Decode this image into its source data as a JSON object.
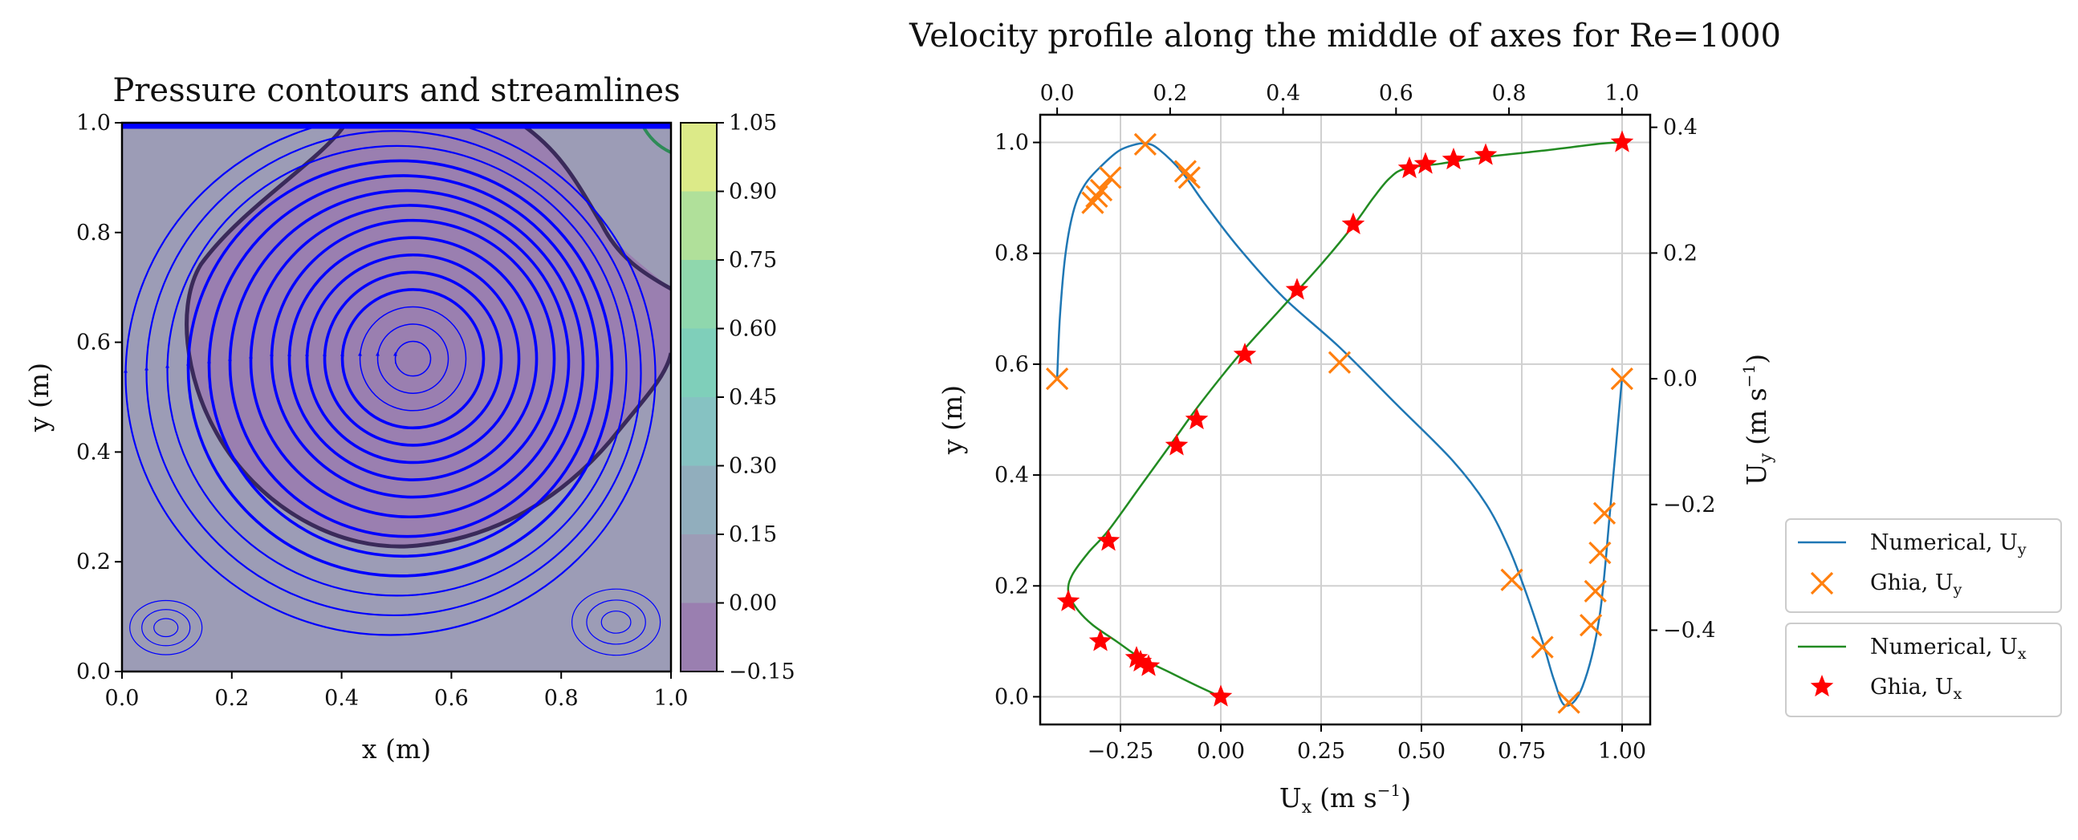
{
  "chart_data": [
    {
      "type": "heatmap",
      "title": "Pressure contours and streamlines",
      "xlabel": "x (m)",
      "ylabel": "y (m)",
      "xlim": [
        0,
        1
      ],
      "ylim": [
        0,
        1
      ],
      "xticks": [
        "0.0",
        "0.2",
        "0.4",
        "0.6",
        "0.8",
        "1.0"
      ],
      "yticks": [
        "0.0",
        "0.2",
        "0.4",
        "0.6",
        "0.8",
        "1.0"
      ],
      "colorbar": {
        "levels": [
          -0.15,
          0.0,
          0.15,
          0.3,
          0.45,
          0.6,
          0.75,
          0.9,
          1.05
        ],
        "tick_labels": [
          "−0.15",
          "0.00",
          "0.15",
          "0.30",
          "0.45",
          "0.60",
          "0.75",
          "0.90",
          "1.05"
        ],
        "colors": [
          "#9a7fb0",
          "#9c9cb6",
          "#91aebd",
          "#86c2c2",
          "#7fcfba",
          "#8fd7ad",
          "#b0e09a",
          "#dcea88",
          "#f3f183"
        ]
      },
      "vortex_center": [
        0.53,
        0.57
      ],
      "background_color": "#9c9cb6",
      "inner_region_color": "#9a7fb0",
      "streamline_color": "#0000ff",
      "contour_color": "#3a2a5a"
    },
    {
      "type": "line",
      "title": "Velocity profile along the middle of axes for Re=1000",
      "xlabel_bottom": "U",
      "xlabel_bottom_sub": "x",
      "xlabel_bottom_unit": "(m s",
      "ylabel_left": "y (m)",
      "ylabel_right": "U",
      "ylabel_right_sub": "y",
      "ylabel_right_unit": "(m s",
      "unit_exp": "−1",
      "unit_close": ")",
      "xlim_bottom": [
        -0.45,
        1.07
      ],
      "ylim_left": [
        -0.05,
        1.05
      ],
      "xlim_top": [
        -0.03,
        1.05
      ],
      "ylim_right": [
        -0.55,
        0.42
      ],
      "xticks_bottom": [
        -0.25,
        0.0,
        0.25,
        0.5,
        0.75,
        1.0
      ],
      "xtick_labels_bottom": [
        "−0.25",
        "0.00",
        "0.25",
        "0.50",
        "0.75",
        "1.00"
      ],
      "yticks_left": [
        0.0,
        0.2,
        0.4,
        0.6,
        0.8,
        1.0
      ],
      "ytick_labels_left": [
        "0.0",
        "0.2",
        "0.4",
        "0.6",
        "0.8",
        "1.0"
      ],
      "xticks_top": [
        0.0,
        0.2,
        0.4,
        0.6,
        0.8,
        1.0
      ],
      "xtick_labels_top": [
        "0.0",
        "0.2",
        "0.4",
        "0.6",
        "0.8",
        "1.0"
      ],
      "yticks_right": [
        -0.4,
        -0.2,
        0.0,
        0.2,
        0.4
      ],
      "ytick_labels_right": [
        "−0.4",
        "−0.2",
        "0.0",
        "0.2",
        "0.4"
      ],
      "grid": true,
      "series": [
        {
          "name": "Numerical, U",
          "name_sub": "y",
          "axes": "top-right",
          "style": "line",
          "color": "#1f77b4",
          "x": [
            0.0,
            0.005,
            0.015,
            0.03,
            0.05,
            0.08,
            0.11,
            0.14,
            0.16,
            0.18,
            0.22,
            0.26,
            0.32,
            0.4,
            0.5,
            0.6,
            0.7,
            0.76,
            0.8,
            0.83,
            0.86,
            0.88,
            0.9,
            0.93,
            0.96,
            0.98,
            1.0
          ],
          "y": [
            0.0,
            0.1,
            0.2,
            0.27,
            0.31,
            0.34,
            0.363,
            0.373,
            0.374,
            0.365,
            0.33,
            0.28,
            0.21,
            0.13,
            0.05,
            -0.04,
            -0.13,
            -0.2,
            -0.27,
            -0.34,
            -0.42,
            -0.48,
            -0.52,
            -0.49,
            -0.38,
            -0.2,
            0.0
          ]
        },
        {
          "name": "Ghia, U",
          "name_sub": "y",
          "axes": "top-right",
          "style": "x",
          "color": "#ff7f0e",
          "x": [
            0.0,
            0.063,
            0.07,
            0.078,
            0.094,
            0.156,
            0.227,
            0.234,
            0.5,
            0.805,
            0.859,
            0.906,
            0.945,
            0.953,
            0.961,
            0.969,
            1.0
          ],
          "y": [
            0.0,
            0.28,
            0.29,
            0.3,
            0.32,
            0.373,
            0.33,
            0.32,
            0.026,
            -0.32,
            -0.427,
            -0.515,
            -0.392,
            -0.338,
            -0.277,
            -0.214,
            0.0
          ]
        },
        {
          "name": "Numerical, U",
          "name_sub": "x",
          "axes": "bottom-left",
          "style": "line",
          "color": "#228b22",
          "x": [
            0.0,
            -0.06,
            -0.13,
            -0.2,
            -0.26,
            -0.32,
            -0.36,
            -0.38,
            -0.37,
            -0.33,
            -0.28,
            -0.2,
            -0.12,
            -0.05,
            0.05,
            0.15,
            0.25,
            0.33,
            0.38,
            0.42,
            0.46,
            0.55,
            0.65,
            0.8,
            0.95,
            1.0
          ],
          "y": [
            0.0,
            0.02,
            0.045,
            0.07,
            0.1,
            0.13,
            0.16,
            0.19,
            0.22,
            0.26,
            0.3,
            0.38,
            0.46,
            0.53,
            0.62,
            0.7,
            0.78,
            0.85,
            0.9,
            0.935,
            0.953,
            0.962,
            0.973,
            0.985,
            0.998,
            1.0
          ]
        },
        {
          "name": "Ghia, U",
          "name_sub": "x",
          "axes": "bottom-left",
          "style": "star",
          "color": "#ff0000",
          "x": [
            0.0,
            -0.18,
            -0.2,
            -0.21,
            -0.3,
            -0.38,
            -0.28,
            -0.11,
            -0.06,
            0.06,
            0.19,
            0.33,
            0.47,
            0.51,
            0.58,
            0.66,
            1.0
          ],
          "y": [
            0.0,
            0.055,
            0.063,
            0.07,
            0.1,
            0.172,
            0.281,
            0.453,
            0.5,
            0.617,
            0.734,
            0.852,
            0.953,
            0.961,
            0.969,
            0.977,
            1.0
          ]
        }
      ]
    }
  ]
}
